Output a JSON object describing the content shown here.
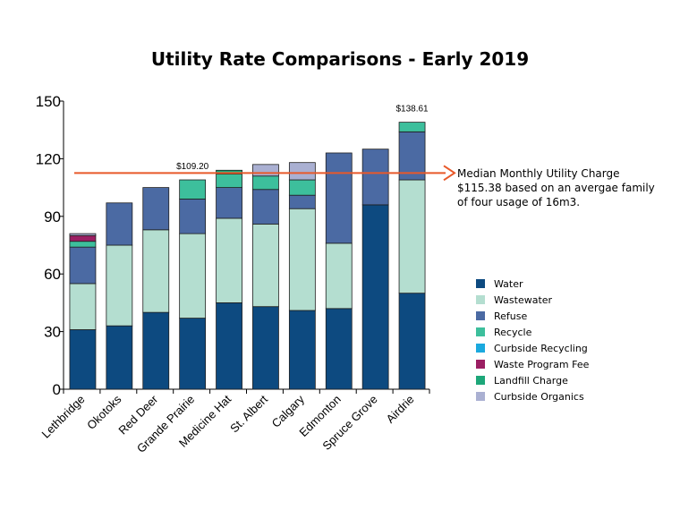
{
  "chart_data": {
    "type": "bar",
    "stacked": true,
    "title": "Utility Rate Comparisons - Early 2019",
    "categories": [
      "Lethbridge",
      "Okotoks",
      "Red Deer",
      "Grande Prairie",
      "Medicine Hat",
      "St. Albert",
      "Calgary",
      "Edmonton",
      "Spruce Grove",
      "Airdrie"
    ],
    "ylim": [
      0,
      150
    ],
    "yticks": [
      0,
      30,
      60,
      90,
      120,
      150
    ],
    "series": [
      {
        "name": "Water",
        "color": "#0d4a80",
        "values": [
          31,
          33,
          40,
          37,
          45,
          43,
          41,
          42,
          96,
          50
        ]
      },
      {
        "name": "Wastewater",
        "color": "#b4ded0",
        "values": [
          24,
          42,
          43,
          44,
          44,
          43,
          53,
          34,
          0,
          59
        ]
      },
      {
        "name": "Refuse",
        "color": "#4b6aa3",
        "values": [
          19,
          22,
          22,
          18,
          16,
          18,
          7,
          47,
          29,
          25
        ]
      },
      {
        "name": "Recycle",
        "color": "#3dbf9c",
        "values": [
          3,
          0,
          0,
          10,
          7,
          7,
          8,
          0,
          0,
          5
        ]
      },
      {
        "name": "Curbside Recycling",
        "color": "#1ba9de",
        "values": [
          0,
          0,
          0,
          0,
          0,
          0,
          0,
          0,
          0,
          0
        ]
      },
      {
        "name": "Waste Program Fee",
        "color": "#9b1f63",
        "values": [
          3,
          0,
          0,
          0,
          0,
          0,
          0,
          0,
          0,
          0
        ]
      },
      {
        "name": "Landfill Charge",
        "color": "#1da779",
        "values": [
          0,
          0,
          0,
          0,
          2,
          0,
          0,
          0,
          0,
          0
        ]
      },
      {
        "name": "Curbside Organics",
        "color": "#aab0d2",
        "values": [
          1,
          0,
          0,
          0,
          0,
          6,
          9,
          0,
          0,
          0
        ]
      }
    ],
    "data_labels": [
      {
        "category": "Grande Prairie",
        "text": "$109.20"
      },
      {
        "category": "Airdrie",
        "text": "$138.61"
      }
    ],
    "reference_line": {
      "value": 115.38,
      "color": "#e8592a",
      "note": "Median Monthly Utility Charge $115.38 based on an avergae family of four usage of 16m3."
    },
    "grid": false,
    "legend_position": "right"
  }
}
